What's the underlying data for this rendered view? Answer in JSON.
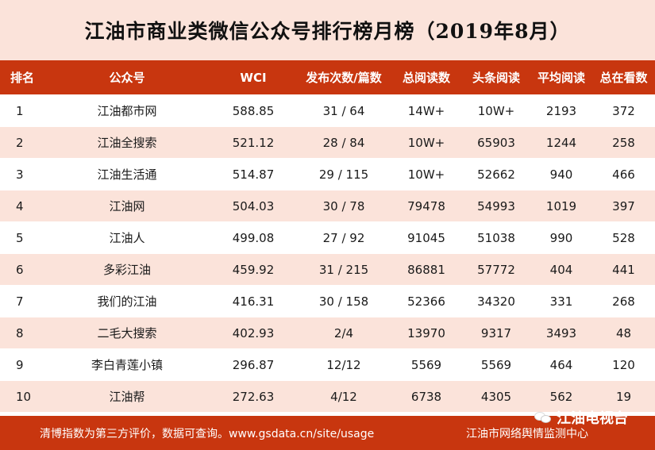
{
  "title": "江油市商业类微信公众号排行榜月榜（2019年8月）",
  "header": [
    "排名",
    "公众号",
    "WCI",
    "发布次数/篇数",
    "总阅读数",
    "头条阅读",
    "平均阅读",
    "总在看数"
  ],
  "rows": [
    [
      "1",
      "江油都市网",
      "588.85",
      "31 / 64",
      "14W+",
      "10W+",
      "2193",
      "372"
    ],
    [
      "2",
      "江油全搜索",
      "521.12",
      "28 / 84",
      "10W+",
      "65903",
      "1244",
      "258"
    ],
    [
      "3",
      "江油生活通",
      "514.87",
      "29 / 115",
      "10W+",
      "52662",
      "940",
      "466"
    ],
    [
      "4",
      "江油网",
      "504.03",
      "30 / 78",
      "79478",
      "54993",
      "1019",
      "397"
    ],
    [
      "5",
      "江油人",
      "499.08",
      "27 / 92",
      "91045",
      "51038",
      "990",
      "528"
    ],
    [
      "6",
      "多彩江油",
      "459.92",
      "31 / 215",
      "86881",
      "57772",
      "404",
      "441"
    ],
    [
      "7",
      "我们的江油",
      "416.31",
      "30 / 158",
      "52366",
      "34320",
      "331",
      "268"
    ],
    [
      "8",
      "二毛大搜索",
      "402.93",
      "2/4",
      "13970",
      "9317",
      "3493",
      "48"
    ],
    [
      "9",
      "李白青莲小镇",
      "296.87",
      "12/12",
      "5569",
      "5569",
      "464",
      "120"
    ],
    [
      "10",
      "江油帮",
      "272.63",
      "4/12",
      "6738",
      "4305",
      "562",
      "19"
    ]
  ],
  "footer": {
    "note": "清博指数为第三方评价，数据可查询。www.gsdata.cn/site/usage",
    "center": "江油市网络舆情监测中心"
  },
  "watermark": {
    "icon": "wechat-icon",
    "text": "江油电视台"
  },
  "colors": {
    "header_bg": "#c8360f",
    "stripe_bg": "#fbe3da"
  }
}
